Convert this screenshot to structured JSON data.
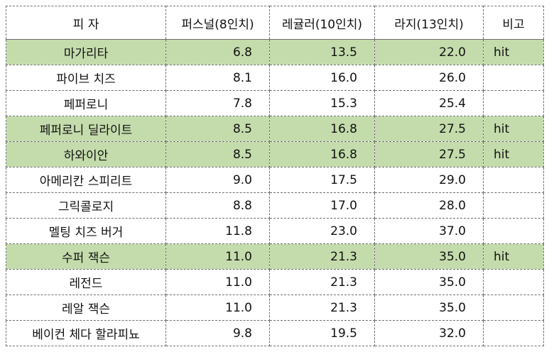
{
  "headers": [
    "피 자",
    "퍼스널(8인치)",
    "레귤러(10인치)",
    "라지(13인치)",
    "비고"
  ],
  "highlight_color": "#c4dcac",
  "rows": [
    {
      "name": "마가리타",
      "personal": "6.8",
      "regular": "13.5",
      "large": "22.0",
      "note": "hit"
    },
    {
      "name": "파이브 치즈",
      "personal": "8.1",
      "regular": "16.0",
      "large": "26.0",
      "note": ""
    },
    {
      "name": "페퍼로니",
      "personal": "7.8",
      "regular": "15.3",
      "large": "25.4",
      "note": ""
    },
    {
      "name": "페퍼로니 딜라이트",
      "personal": "8.5",
      "regular": "16.8",
      "large": "27.5",
      "note": "hit"
    },
    {
      "name": "하와이안",
      "personal": "8.5",
      "regular": "16.8",
      "large": "27.5",
      "note": "hit"
    },
    {
      "name": "아메리칸 스피리트",
      "personal": "9.0",
      "regular": "17.5",
      "large": "29.0",
      "note": ""
    },
    {
      "name": "그릭콜로지",
      "personal": "8.8",
      "regular": "17.0",
      "large": "28.0",
      "note": ""
    },
    {
      "name": "멜팅 치즈 버거",
      "personal": "11.8",
      "regular": "23.0",
      "large": "37.0",
      "note": ""
    },
    {
      "name": "수퍼 잭슨",
      "personal": "11.0",
      "regular": "21.3",
      "large": "35.0",
      "note": "hit"
    },
    {
      "name": "레전드",
      "personal": "11.0",
      "regular": "21.3",
      "large": "35.0",
      "note": ""
    },
    {
      "name": "레알 잭슨",
      "personal": "11.0",
      "regular": "21.3",
      "large": "35.0",
      "note": ""
    },
    {
      "name": "베이컨 체다 할라피뇨",
      "personal": "9.8",
      "regular": "19.5",
      "large": "32.0",
      "note": ""
    }
  ]
}
